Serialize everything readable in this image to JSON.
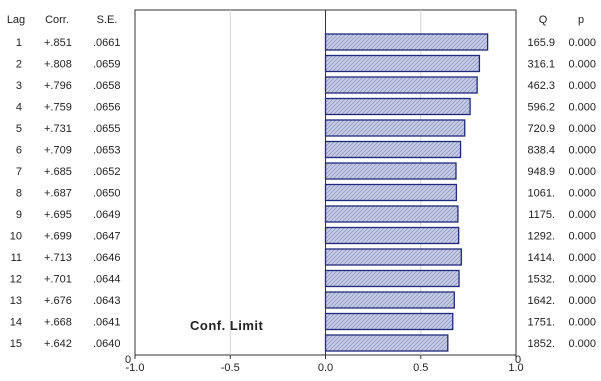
{
  "chart_data": {
    "type": "bar",
    "orientation": "horizontal",
    "columns": {
      "lag": "Lag",
      "corr": "Corr.",
      "se": "S.E.",
      "q": "Q",
      "p": "p"
    },
    "rows": [
      {
        "lag": "1",
        "corr": "+.851",
        "se": ".0661",
        "q": "165.9",
        "p": "0.000",
        "value": 0.851
      },
      {
        "lag": "2",
        "corr": "+.808",
        "se": ".0659",
        "q": "316.1",
        "p": "0.000",
        "value": 0.808
      },
      {
        "lag": "3",
        "corr": "+.796",
        "se": ".0658",
        "q": "462.3",
        "p": "0.000",
        "value": 0.796
      },
      {
        "lag": "4",
        "corr": "+.759",
        "se": ".0656",
        "q": "596.2",
        "p": "0.000",
        "value": 0.759
      },
      {
        "lag": "5",
        "corr": "+.731",
        "se": ".0655",
        "q": "720.9",
        "p": "0.000",
        "value": 0.731
      },
      {
        "lag": "6",
        "corr": "+.709",
        "se": ".0653",
        "q": "838.4",
        "p": "0.000",
        "value": 0.709
      },
      {
        "lag": "7",
        "corr": "+.685",
        "se": ".0652",
        "q": "948.9",
        "p": "0.000",
        "value": 0.685
      },
      {
        "lag": "8",
        "corr": "+.687",
        "se": ".0650",
        "q": "1061.",
        "p": "0.000",
        "value": 0.687
      },
      {
        "lag": "9",
        "corr": "+.695",
        "se": ".0649",
        "q": "1175.",
        "p": "0.000",
        "value": 0.695
      },
      {
        "lag": "10",
        "corr": "+.699",
        "se": ".0647",
        "q": "1292.",
        "p": "0.000",
        "value": 0.699
      },
      {
        "lag": "11",
        "corr": "+.713",
        "se": ".0646",
        "q": "1414.",
        "p": "0.000",
        "value": 0.713
      },
      {
        "lag": "12",
        "corr": "+.701",
        "se": ".0644",
        "q": "1532.",
        "p": "0.000",
        "value": 0.701
      },
      {
        "lag": "13",
        "corr": "+.676",
        "se": ".0643",
        "q": "1642.",
        "p": "0.000",
        "value": 0.676
      },
      {
        "lag": "14",
        "corr": "+.668",
        "se": ".0641",
        "q": "1751.",
        "p": "0.000",
        "value": 0.668
      },
      {
        "lag": "15",
        "corr": "+.642",
        "se": ".0640",
        "q": "1852.",
        "p": "0.000",
        "value": 0.642
      }
    ],
    "x_ticks": [
      {
        "value": -1.0,
        "label": "-1.0"
      },
      {
        "value": -0.5,
        "label": "-0.5"
      },
      {
        "value": 0.0,
        "label": "0.0"
      },
      {
        "value": 0.5,
        "label": "0.5"
      },
      {
        "value": 1.0,
        "label": "1.0"
      }
    ],
    "xlim": [
      -1.0,
      1.0
    ],
    "left_axis_zero": "0",
    "right_axis_zero": "0",
    "annotation": "Conf. Limit",
    "colors": {
      "bar_fill": "#c8cde4",
      "bar_stroke": "#1f2a7a",
      "hatch": "#8f98c8",
      "axis": "#333333",
      "gridline": "#d6d6d6"
    }
  }
}
